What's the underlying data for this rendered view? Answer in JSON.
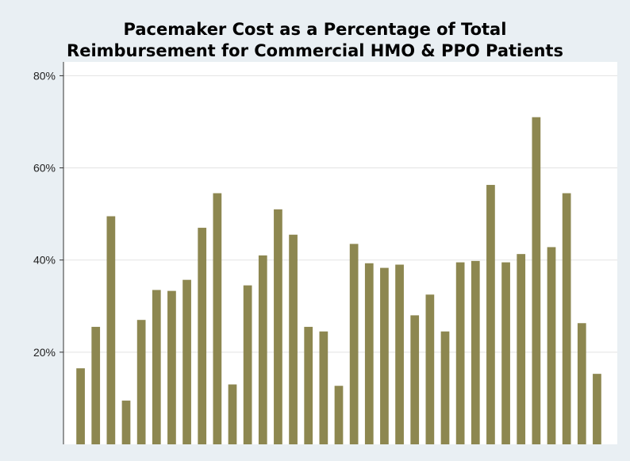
{
  "chart_data": {
    "type": "bar",
    "title_lines": [
      "Pacemaker Cost as a Percentage of Total",
      "Reimbursement for Commercial HMO & PPO Patients"
    ],
    "xlabel": "",
    "ylabel": "",
    "ylim": [
      0,
      83
    ],
    "yticks": [
      20,
      40,
      60,
      80
    ],
    "ytick_labels": [
      "20%",
      "40%",
      "60%",
      "80%"
    ],
    "grid": true,
    "bar_color": "#8d8750",
    "plot_bg": "#ffffff",
    "grid_color": "#e3e3e3",
    "values": [
      16.5,
      25.5,
      49.5,
      9.5,
      27,
      33.5,
      33.3,
      35.7,
      47,
      54.5,
      13,
      34.5,
      41,
      51,
      45.5,
      25.5,
      24.5,
      12.7,
      43.5,
      39.3,
      38.3,
      39,
      28,
      32.5,
      24.5,
      39.5,
      39.8,
      56.3,
      39.5,
      41.3,
      71,
      42.8,
      54.5,
      26.3,
      15.3
    ]
  }
}
